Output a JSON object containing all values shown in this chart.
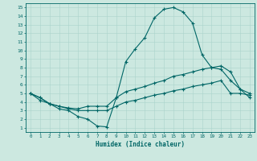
{
  "xlabel": "Humidex (Indice chaleur)",
  "xlim": [
    -0.5,
    23.5
  ],
  "ylim": [
    0.5,
    15.5
  ],
  "yticks": [
    1,
    2,
    3,
    4,
    5,
    6,
    7,
    8,
    9,
    10,
    11,
    12,
    13,
    14,
    15
  ],
  "xticks": [
    0,
    1,
    2,
    3,
    4,
    5,
    6,
    7,
    8,
    9,
    10,
    11,
    12,
    13,
    14,
    15,
    16,
    17,
    18,
    19,
    20,
    21,
    22,
    23
  ],
  "background_color": "#cce8e0",
  "grid_color": "#aad4cc",
  "line_color": "#006666",
  "line1_x": [
    0,
    1,
    2,
    3,
    4,
    5,
    6,
    7,
    8,
    9,
    10,
    11,
    12,
    13,
    14,
    15,
    16,
    17,
    18,
    19,
    20,
    21,
    22,
    23
  ],
  "line1_y": [
    5.0,
    4.5,
    3.8,
    3.2,
    3.0,
    2.3,
    2.0,
    1.2,
    1.1,
    4.5,
    8.7,
    10.2,
    11.5,
    13.8,
    14.8,
    15.0,
    14.5,
    13.2,
    9.5,
    8.0,
    7.8,
    6.5,
    5.5,
    4.5
  ],
  "line2_x": [
    0,
    1,
    2,
    3,
    4,
    5,
    6,
    7,
    8,
    9,
    10,
    11,
    12,
    13,
    14,
    15,
    16,
    17,
    18,
    19,
    20,
    21,
    22,
    23
  ],
  "line2_y": [
    5.0,
    4.5,
    3.8,
    3.5,
    3.3,
    3.2,
    3.5,
    3.5,
    3.5,
    4.5,
    5.2,
    5.5,
    5.8,
    6.2,
    6.5,
    7.0,
    7.2,
    7.5,
    7.8,
    8.0,
    8.2,
    7.5,
    5.5,
    5.0
  ],
  "line3_x": [
    0,
    1,
    2,
    3,
    4,
    5,
    6,
    7,
    8,
    9,
    10,
    11,
    12,
    13,
    14,
    15,
    16,
    17,
    18,
    19,
    20,
    21,
    22,
    23
  ],
  "line3_y": [
    5.0,
    4.2,
    3.8,
    3.5,
    3.2,
    3.0,
    3.0,
    3.0,
    3.0,
    3.5,
    4.0,
    4.2,
    4.5,
    4.8,
    5.0,
    5.3,
    5.5,
    5.8,
    6.0,
    6.2,
    6.5,
    5.0,
    5.0,
    4.8
  ]
}
